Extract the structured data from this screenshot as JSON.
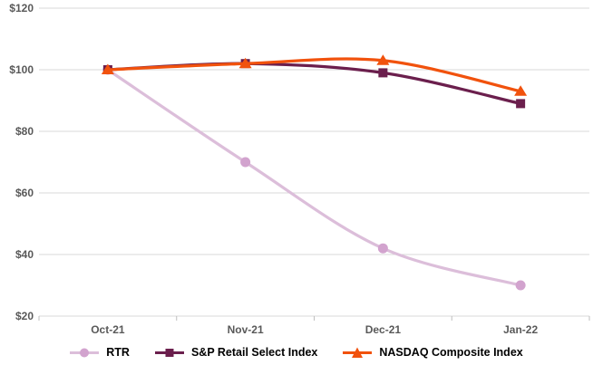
{
  "chart_data": {
    "type": "line",
    "title": "",
    "xlabel": "",
    "ylabel": "",
    "categories": [
      "Oct-21",
      "Nov-21",
      "Dec-21",
      "Jan-22"
    ],
    "series": [
      {
        "name": "RTR",
        "marker": "circle",
        "line_color": "#dcbeda",
        "marker_color": "#d2a3ce",
        "values": [
          100,
          70,
          42,
          30
        ]
      },
      {
        "name": "S&P Retail Select Index",
        "marker": "square",
        "line_color": "#6b1f4d",
        "marker_color": "#6b1f4d",
        "values": [
          100,
          102,
          99,
          89
        ]
      },
      {
        "name": "NASDAQ Composite Index",
        "marker": "triangle",
        "line_color": "#f1520d",
        "marker_color": "#f1520d",
        "values": [
          100,
          102,
          103,
          93
        ]
      }
    ],
    "ylim": [
      20,
      120
    ],
    "y_ticks": [
      {
        "value": 120,
        "label": "$120"
      },
      {
        "value": 100,
        "label": "$100"
      },
      {
        "value": 80,
        "label": "$80"
      },
      {
        "value": 60,
        "label": "$60"
      },
      {
        "value": 40,
        "label": "$40"
      },
      {
        "value": 20,
        "label": "$20"
      }
    ],
    "grid": true,
    "legend_position": "bottom",
    "colors": {
      "grid": "#d9d9d9",
      "axis_tick": "#bfbfbf",
      "axis_label": "#595959",
      "legend_text": "#000000",
      "background": "#ffffff"
    }
  }
}
